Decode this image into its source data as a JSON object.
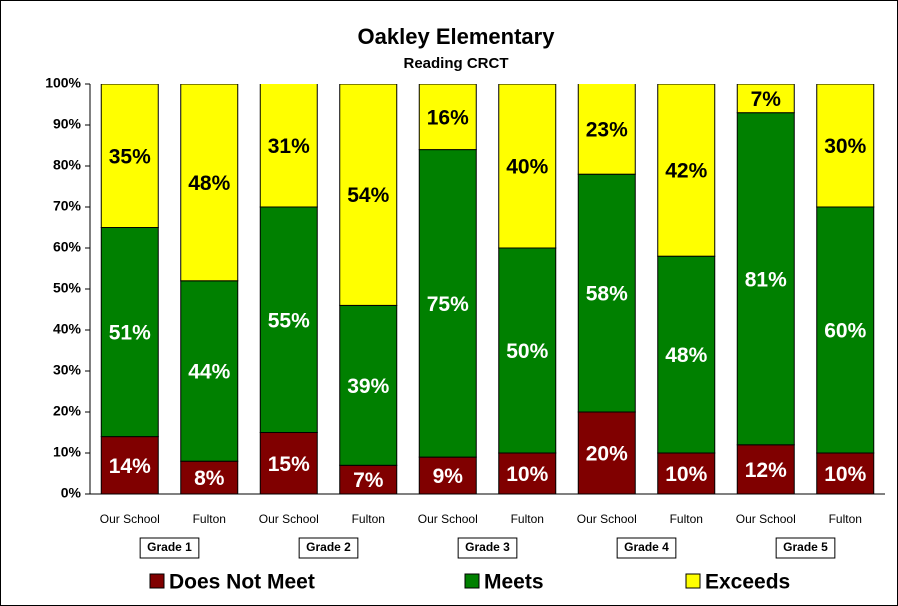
{
  "chart_data": {
    "type": "stacked_bar",
    "title": "Oakley Elementary",
    "subtitle": "Reading CRCT",
    "categories": [
      "Our School",
      "Fulton",
      "Our School",
      "Fulton",
      "Our School",
      "Fulton",
      "Our School",
      "Fulton",
      "Our School",
      "Fulton"
    ],
    "groups": [
      "Grade 1",
      "Grade 2",
      "Grade 3",
      "Grade 4",
      "Grade 5"
    ],
    "series": [
      {
        "name": "Does Not Meet",
        "color": "#800000",
        "label_color": "#ffffff",
        "values": [
          14,
          8,
          15,
          7,
          9,
          10,
          20,
          10,
          12,
          10
        ],
        "value_labels": [
          "14%",
          "8%",
          "15%",
          "7%",
          "9%",
          "10%",
          "20%",
          "10%",
          "12%",
          "10%"
        ]
      },
      {
        "name": "Meets",
        "color": "#008000",
        "label_color": "#ffffff",
        "values": [
          51,
          44,
          55,
          39,
          75,
          50,
          58,
          48,
          81,
          60
        ],
        "value_labels": [
          "51%",
          "44%",
          "55%",
          "39%",
          "75%",
          "50%",
          "58%",
          "48%",
          "81%",
          "60%"
        ]
      },
      {
        "name": "Exceeds",
        "color": "#ffff00",
        "label_color": "#000000",
        "values": [
          35,
          48,
          31,
          54,
          16,
          40,
          23,
          42,
          7,
          30
        ],
        "value_labels": [
          "35%",
          "48%",
          "31%",
          "54%",
          "16%",
          "40%",
          "23%",
          "42%",
          "7%",
          "30%"
        ]
      }
    ],
    "ylim": [
      0,
      100
    ],
    "yticks": [
      {
        "value": 0,
        "label": "0%"
      },
      {
        "value": 10,
        "label": "10%"
      },
      {
        "value": 20,
        "label": "20%"
      },
      {
        "value": 30,
        "label": "30%"
      },
      {
        "value": 40,
        "label": "40%"
      },
      {
        "value": 50,
        "label": "50%"
      },
      {
        "value": 60,
        "label": "60%"
      },
      {
        "value": 70,
        "label": "70%"
      },
      {
        "value": 80,
        "label": "80%"
      },
      {
        "value": 90,
        "label": "90%"
      },
      {
        "value": 100,
        "label": "100%"
      }
    ],
    "grid": false,
    "legend": "bottom"
  }
}
